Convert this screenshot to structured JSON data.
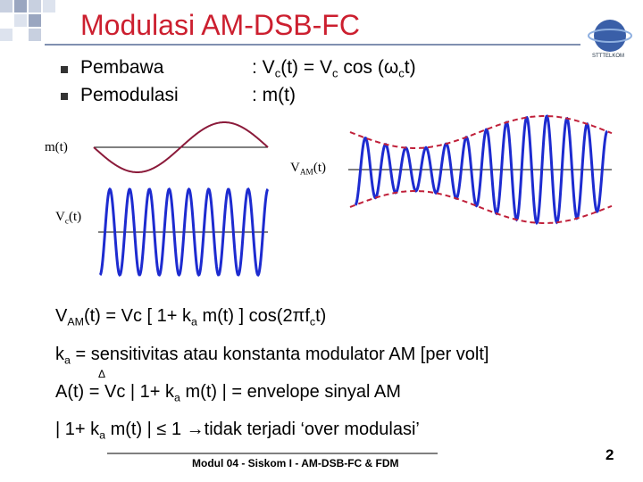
{
  "header": {
    "title": "Modulasi AM-DSB-FC",
    "logo_caption": "STTTELKOM"
  },
  "bullets": [
    {
      "term": "Pembawa",
      "def": [
        ": V",
        "c",
        "(t) = V",
        "c",
        " cos (ω",
        "c",
        "t)"
      ]
    },
    {
      "term": "Pemodulasi",
      "def": [
        ": m(t)"
      ]
    }
  ],
  "diagram": {
    "mt_label": "m(t)",
    "vam_label": [
      "V",
      "AM",
      "(t)"
    ],
    "vc_label": [
      "V",
      "c",
      "(t)"
    ]
  },
  "equations": [
    [
      "V",
      "AM",
      "(t) = Vc [ 1+ k",
      "a",
      " m(t) ] cos(2πf",
      "c",
      "t)"
    ],
    [
      "k",
      "a",
      " = sensitivitas atau konstanta modulator AM [per volt]"
    ],
    [
      "A(t) = Vc | 1+ k",
      "a",
      " m(t) | = envelope sinyal AM"
    ],
    [
      "| 1+ k",
      "a",
      " m(t) | ≤ 1  →tidak terjadi ‘over modulasi’"
    ]
  ],
  "delta": "Δ",
  "footer": {
    "text": "Modul 04 - Siskom I - AM-DSB-FC & FDM",
    "page": "2"
  }
}
